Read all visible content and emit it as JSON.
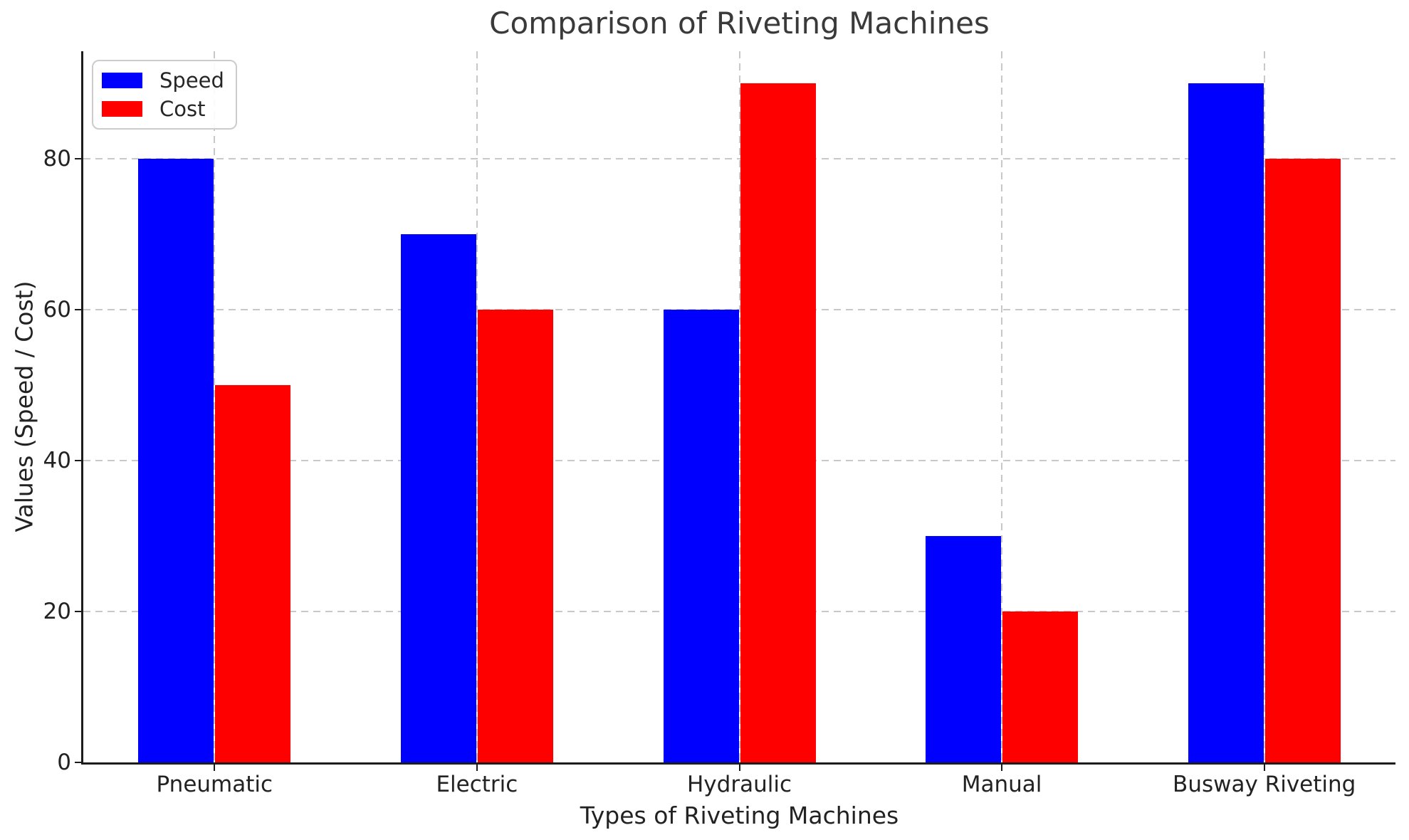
{
  "chart_data": {
    "type": "bar",
    "title": "Comparison of Riveting Machines",
    "xlabel": "Types of Riveting Machines",
    "ylabel": "Values (Speed / Cost)",
    "categories": [
      "Pneumatic",
      "Electric",
      "Hydraulic",
      "Manual",
      "Busway Riveting"
    ],
    "series": [
      {
        "name": "Speed",
        "color": "#0000ff",
        "values": [
          80,
          70,
          60,
          30,
          90
        ]
      },
      {
        "name": "Cost",
        "color": "#ff0000",
        "values": [
          50,
          60,
          90,
          20,
          80
        ]
      }
    ],
    "yticks": [
      0,
      20,
      40,
      60,
      80
    ],
    "ylim": [
      0,
      94.2
    ],
    "grid": true,
    "grid_style": "dashed",
    "legend_position": "upper-left"
  },
  "colors": {
    "speed_bar": "#0000ff",
    "cost_bar": "#ff0000",
    "grid": "#c8c8c8",
    "spine": "#1c1c1c",
    "title_text": "#3a3a3a",
    "tick_text": "#222222"
  }
}
